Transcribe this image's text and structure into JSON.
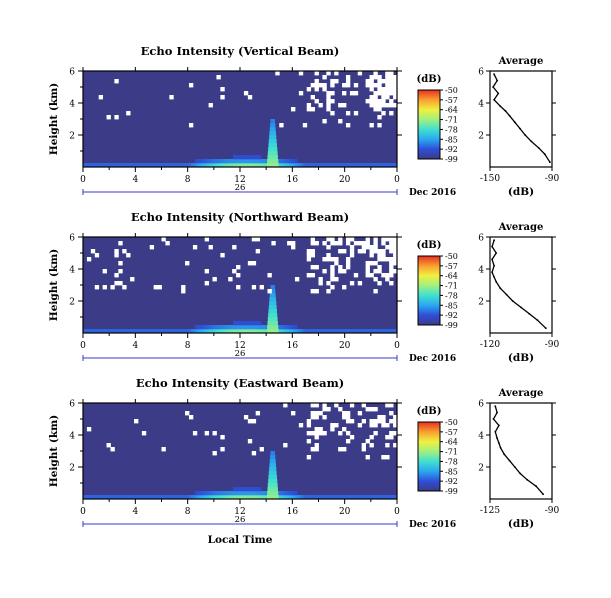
{
  "chart_data": [
    {
      "type": "heatmap",
      "title": "Echo Intensity (Vertical Beam)",
      "ylabel": "Height (km)",
      "xlabel": "",
      "x_ticks": [
        "0",
        "4",
        "8",
        "12",
        "16",
        "20",
        "0"
      ],
      "date_day": "26",
      "date_month": "Dec 2016",
      "xlim_hours": [
        0,
        24
      ],
      "ylim_km": [
        0,
        6
      ],
      "y_ticks": [
        "2",
        "4",
        "6"
      ],
      "colorbar": {
        "unit": "(dB)",
        "ticks": [
          "-50",
          "-57",
          "-64",
          "-71",
          "-78",
          "-85",
          "-92",
          "-99"
        ],
        "range": [
          -99,
          -50
        ]
      },
      "average_profile": {
        "title": "Average",
        "xlabel": "(dB)",
        "x_ticks": [
          "-150",
          "-90"
        ],
        "xlim": [
          -150,
          -90
        ],
        "y_ticks": [
          "2",
          "4",
          "6"
        ],
        "height_km": [
          0.3,
          0.8,
          1.2,
          1.6,
          2.0,
          2.4,
          2.8,
          3.2,
          3.5,
          3.8,
          4.2,
          4.6,
          5.0,
          5.4,
          5.8
        ],
        "db": [
          -92,
          -97,
          -103,
          -110,
          -116,
          -121,
          -126,
          -131,
          -135,
          -140,
          -146,
          -142,
          -147,
          -143,
          -146
        ]
      }
    },
    {
      "type": "heatmap",
      "title": "Echo Intensity (Northward Beam)",
      "ylabel": "Height (km)",
      "xlabel": "",
      "x_ticks": [
        "0",
        "4",
        "8",
        "12",
        "16",
        "20",
        "0"
      ],
      "date_day": "26",
      "date_month": "Dec 2016",
      "xlim_hours": [
        0,
        24
      ],
      "ylim_km": [
        0,
        6
      ],
      "y_ticks": [
        "2",
        "4",
        "6"
      ],
      "colorbar": {
        "unit": "(dB)",
        "ticks": [
          "-50",
          "-57",
          "-64",
          "-71",
          "-78",
          "-85",
          "-92",
          "-99"
        ],
        "range": [
          -99,
          -50
        ]
      },
      "average_profile": {
        "title": "Average",
        "xlabel": "(dB)",
        "x_ticks": [
          "-120",
          "-90"
        ],
        "xlim": [
          -120,
          -90
        ],
        "y_ticks": [
          "2",
          "4",
          "6"
        ],
        "height_km": [
          0.3,
          0.8,
          1.2,
          1.6,
          2.0,
          2.4,
          2.8,
          3.2,
          3.5,
          3.8,
          4.2,
          4.6,
          5.0,
          5.4,
          5.8
        ],
        "db": [
          -93,
          -97,
          -101,
          -105,
          -109,
          -112,
          -115,
          -117,
          -118,
          -119,
          -118,
          -119,
          -117,
          -119,
          -118
        ]
      }
    },
    {
      "type": "heatmap",
      "title": "Echo Intensity (Eastward Beam)",
      "ylabel": "Height (km)",
      "xlabel": "Local Time",
      "x_ticks": [
        "0",
        "4",
        "8",
        "12",
        "16",
        "20",
        "0"
      ],
      "date_day": "26",
      "date_month": "Dec 2016",
      "xlim_hours": [
        0,
        24
      ],
      "ylim_km": [
        0,
        6
      ],
      "y_ticks": [
        "2",
        "4",
        "6"
      ],
      "colorbar": {
        "unit": "(dB)",
        "ticks": [
          "-50",
          "-57",
          "-64",
          "-71",
          "-78",
          "-85",
          "-92",
          "-99"
        ],
        "range": [
          -99,
          -50
        ]
      },
      "average_profile": {
        "title": "Average",
        "xlabel": "(dB)",
        "x_ticks": [
          "-125",
          "-90"
        ],
        "xlim": [
          -125,
          -90
        ],
        "y_ticks": [
          "2",
          "4",
          "6"
        ],
        "height_km": [
          0.3,
          0.8,
          1.2,
          1.6,
          2.0,
          2.4,
          2.8,
          3.2,
          3.5,
          3.8,
          4.2,
          4.6,
          5.0,
          5.4,
          5.8
        ],
        "db": [
          -95,
          -99,
          -104,
          -108,
          -111,
          -114,
          -117,
          -119,
          -120,
          -121,
          -122,
          -120,
          -123,
          -121,
          -122
        ]
      }
    }
  ],
  "colors": {
    "background_field": "#3b3b88",
    "gap": "#ffffff",
    "colormap": [
      "#3b3b88",
      "#2f4fd8",
      "#2aa8f0",
      "#40e0d0",
      "#a0f080",
      "#f0f040",
      "#f8a030",
      "#e83020"
    ]
  }
}
